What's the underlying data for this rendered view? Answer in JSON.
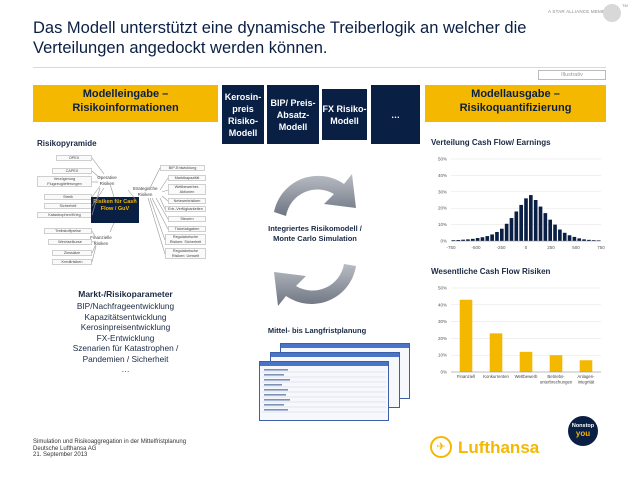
{
  "header": {
    "title": "Das Modell unterstützt eine dynamische Treiberlogik an welcher die Verteilungen angedockt werden können.",
    "alliance": "A STAR ALLIANCE MEMBER",
    "tm": "TM",
    "illustrative": "Illustrativ"
  },
  "left": {
    "heading_line1": "Modelleingabe –",
    "heading_line2": "Risikoinformationen",
    "pyramid_title": "Risikopyramide",
    "pyramid_left": [
      "OPEX",
      "CAPEX",
      "Verzögerung Flugzeuglieferungen",
      "Streik",
      "Sicherheit",
      "Katastrophen/Krieg",
      "Treibstoffpreise",
      "Wechselkurse",
      "Zinssätze",
      "Kreditrisiken"
    ],
    "pyramid_right": [
      "BIP-Entwicklung",
      "Marktkapazität",
      "Wettbewerber-Aktionen",
      "Netzwerkrisiken",
      "Ertr.-Verfügbarkeiten",
      "Steuern",
      "Ticketabgaben",
      "Regulatorische Risiken: Sicherheit",
      "Regulatorische Risiken: Umwelt"
    ],
    "cat_operative": "Operative Risiken",
    "cat_strategic": "Strategische Risiken",
    "cat_financial": "Finanzielle Risiken",
    "center": "Risiken für Cash Flow / GuV",
    "params_title": "Markt-/Risikoparameter",
    "params": [
      "BIP/Nachfrageentwicklung",
      "Kapazitätsentwicklung",
      "Kerosinpreisentwicklung",
      "FX-Entwicklung",
      "Szenarien für Katastrophen /",
      "Pandemien / Sicherheit",
      "…"
    ]
  },
  "middle": {
    "boxes": [
      "Kerosin-preis Risiko-Modell",
      "BIP/ Preis-Absatz-Modell",
      "FX Risiko-Modell",
      "…"
    ],
    "model_label_line1": "Integriertes Risikomodell /",
    "model_label_line2": "Monte Carlo Simulation",
    "longterm": "Mittel- bis Langfristplanung"
  },
  "right": {
    "heading_line1": "Modellausgabe –",
    "heading_line2": "Risikoquantifizierung",
    "dist_title": "Verteilung Cash Flow/ Earnings",
    "risks_title": "Wesentliche Cash Flow Risiken"
  },
  "chart_data": [
    {
      "type": "bar",
      "title": "Verteilung Cash Flow/ Earnings",
      "categories": [
        "-750",
        "-700",
        "-650",
        "-600",
        "-550",
        "-500",
        "-450",
        "-400",
        "-350",
        "-300",
        "-250",
        "-200",
        "-150",
        "-100",
        "-50",
        "0",
        "50",
        "100",
        "150",
        "200",
        "250",
        "300",
        "350",
        "400",
        "450",
        "500",
        "550",
        "600",
        "650",
        "700",
        "750"
      ],
      "values": [
        0.5,
        0.6,
        0.8,
        1.0,
        1.3,
        1.8,
        2.3,
        3.0,
        4.0,
        5.5,
        7.5,
        10.5,
        14,
        18,
        22,
        26,
        28,
        25,
        21,
        17,
        13,
        10,
        7,
        5,
        3.5,
        2.5,
        1.6,
        1.0,
        0.7,
        0.5,
        0.4
      ],
      "xticks": [
        "-750",
        "-500",
        "-250",
        "0",
        "250",
        "500",
        "750"
      ],
      "yticks": [
        "0%",
        "10%",
        "20%",
        "30%",
        "40%",
        "50%"
      ],
      "ylim": [
        0,
        50
      ]
    },
    {
      "type": "bar",
      "title": "Wesentliche Cash Flow Risiken",
      "categories": [
        "Finanziell",
        "Konkurrenten",
        "Wettbewerb",
        "Betriebs-unterbrechungen",
        "Anlagen-integrität"
      ],
      "values": [
        43,
        23,
        12,
        10,
        7
      ],
      "yticks": [
        "0%",
        "10%",
        "20%",
        "30%",
        "40%",
        "50%"
      ],
      "ylim": [
        0,
        50
      ],
      "color": "#f5b800"
    }
  ],
  "footer": {
    "line1": "Simulation und Risikoaggregation in der Mittelfristplanung",
    "line2": "Deutsche Lufthansa AG",
    "line3": "21. September 2013",
    "nonstop": "Nonstop",
    "you": "you",
    "brand": "Lufthansa"
  },
  "colors": {
    "navy": "#0a1f44",
    "yellow": "#f5b800",
    "blue": "#1f3d7a"
  }
}
